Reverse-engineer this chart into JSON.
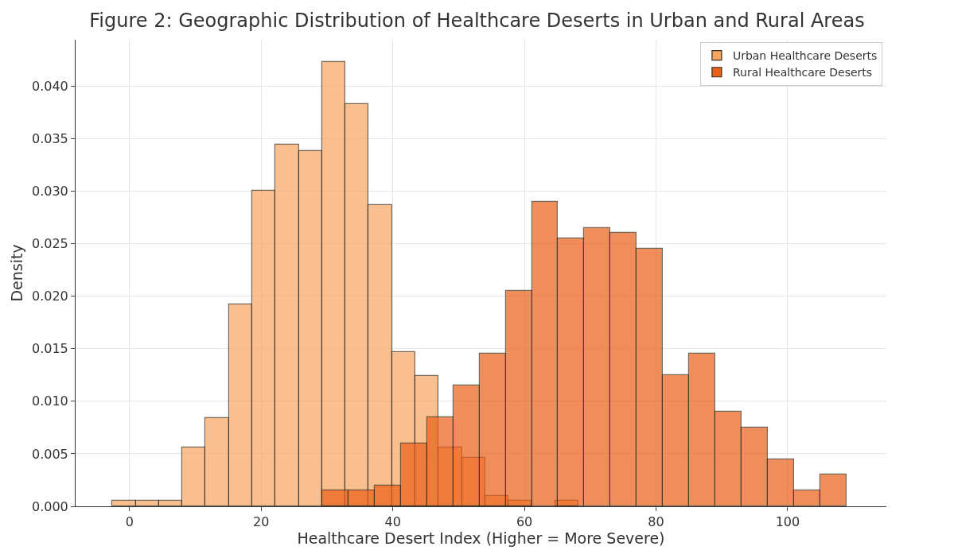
{
  "chart_data": {
    "type": "bar",
    "title": "Figure 2: Geographic Distribution of Healthcare Deserts in Urban and Rural Areas",
    "xlabel": "Healthcare Desert Index (Higher = More Severe)",
    "ylabel": "Density",
    "series": [
      {
        "name": "Urban Healthcare Deserts",
        "color": "#f9a560",
        "x": [
          -0.83,
          2.71,
          6.25,
          9.79,
          13.33,
          16.87,
          20.41,
          23.95,
          27.49,
          31.03,
          34.57,
          38.11,
          41.65,
          45.19,
          48.73,
          52.27,
          55.81,
          59.35,
          62.89,
          66.43
        ],
        "values": [
          0.0005,
          0.0005,
          0.0005,
          0.0056,
          0.0084,
          0.0192,
          0.03,
          0.0344,
          0.0338,
          0.0423,
          0.0383,
          0.0287,
          0.0147,
          0.0124,
          0.0056,
          0.0046,
          0.001,
          0.0005,
          0,
          0.0005
        ]
      },
      {
        "name": "Rural Healthcare Deserts",
        "color": "#e95f15",
        "x": [
          31.29,
          35.27,
          39.25,
          43.23,
          47.21,
          51.19,
          55.17,
          59.15,
          63.13,
          67.11,
          71.09,
          75.07,
          79.05,
          83.03,
          87.01,
          90.99,
          94.97,
          98.95,
          102.93,
          106.91
        ],
        "values": [
          0.0015,
          0.0015,
          0.002,
          0.006,
          0.0085,
          0.0115,
          0.0145,
          0.0205,
          0.029,
          0.0255,
          0.0265,
          0.026,
          0.0245,
          0.0125,
          0.0145,
          0.009,
          0.0075,
          0.0045,
          0.0015,
          0.003
        ]
      }
    ],
    "xlim": [
      -8.2,
      115
    ],
    "xticks": [
      0,
      20,
      40,
      60,
      80,
      100
    ],
    "ylim": [
      0,
      0.0444
    ],
    "yticks": [
      {
        "value": 0,
        "label": "0.000"
      },
      {
        "value": 0.005,
        "label": "0.005"
      },
      {
        "value": 0.01,
        "label": "0.010"
      },
      {
        "value": 0.015,
        "label": "0.015"
      },
      {
        "value": 0.02,
        "label": "0.020"
      },
      {
        "value": 0.025,
        "label": "0.025"
      },
      {
        "value": 0.03,
        "label": "0.030"
      },
      {
        "value": 0.035,
        "label": "0.035"
      },
      {
        "value": 0.04,
        "label": "0.040"
      }
    ],
    "grid": true,
    "legend": "top right"
  }
}
